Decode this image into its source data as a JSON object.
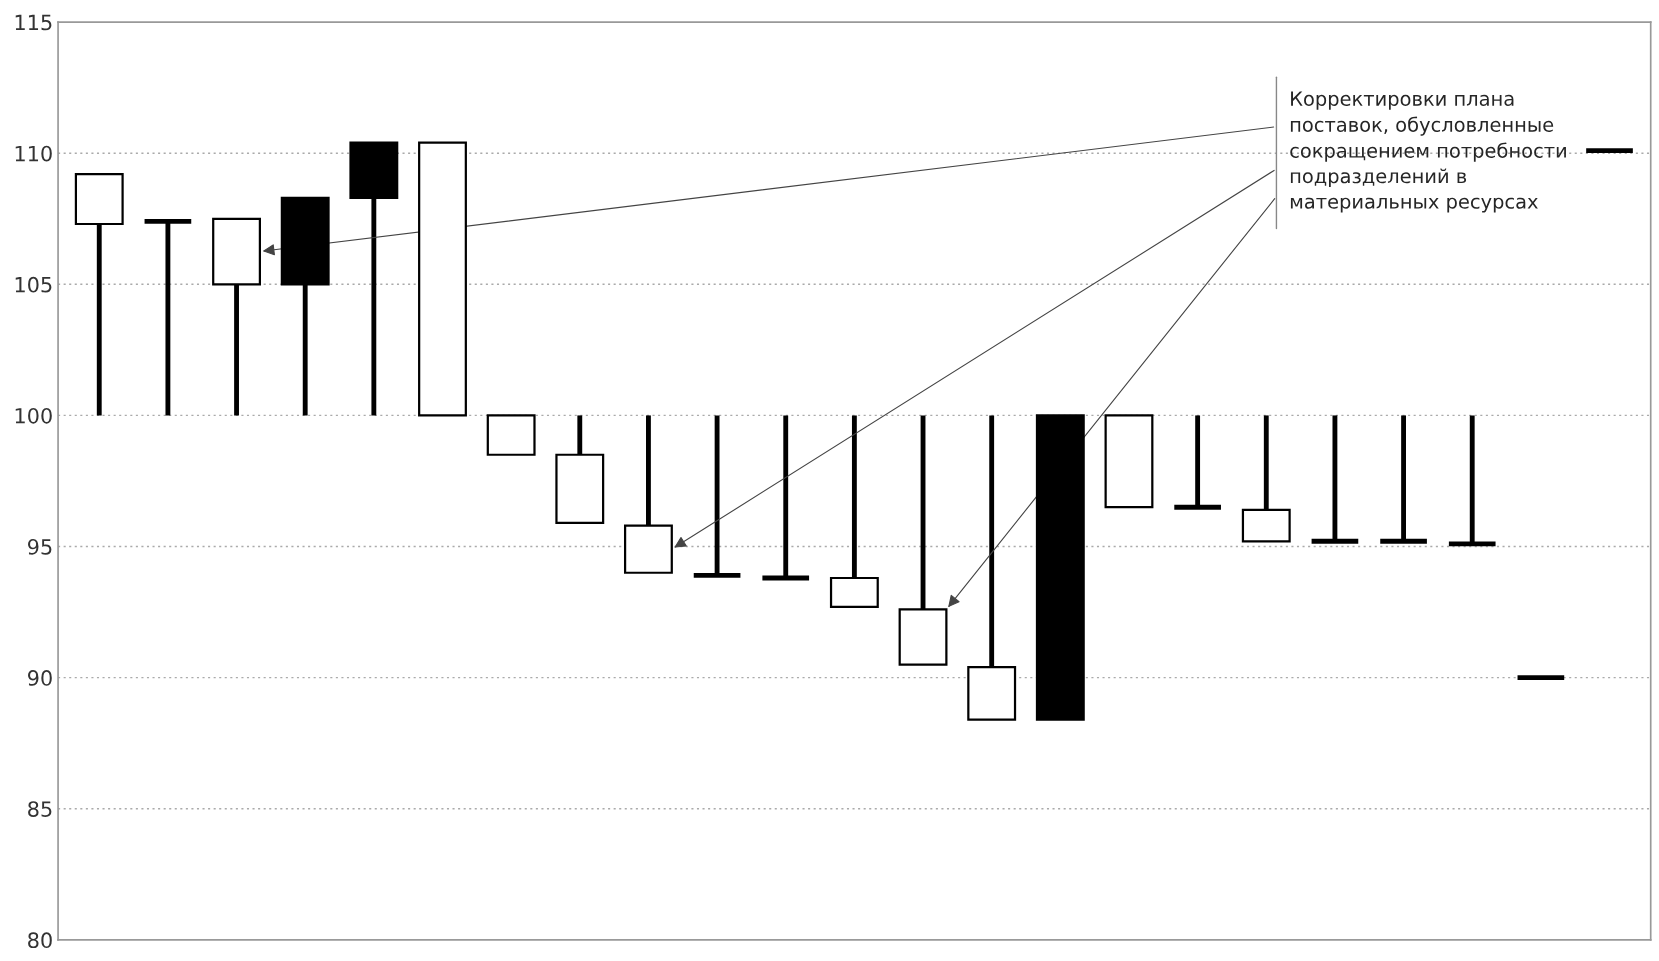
{
  "chart_data": {
    "type": "candlestick",
    "categories": [
      null,
      null,
      null,
      null,
      null,
      null,
      null,
      null,
      null,
      null,
      null,
      null,
      null,
      null,
      null,
      null,
      null,
      null,
      null,
      null,
      null,
      null,
      null
    ],
    "ohlc": [
      [
        107.3,
        109.2,
        100,
        109.2
      ],
      [
        107.4,
        107.4,
        100,
        107.4
      ],
      [
        105.0,
        107.5,
        100,
        107.5
      ],
      [
        108.3,
        108.3,
        100,
        105.0
      ],
      [
        110.4,
        110.4,
        100,
        108.3
      ],
      [
        100,
        110.4,
        100,
        110.4
      ],
      [
        98.5,
        100,
        98.5,
        100
      ],
      [
        95.9,
        100,
        95.9,
        98.5
      ],
      [
        94.0,
        100,
        94.0,
        95.8
      ],
      [
        93.9,
        100,
        93.9,
        93.9
      ],
      [
        93.8,
        100,
        93.8,
        93.8
      ],
      [
        92.7,
        100,
        92.7,
        93.8
      ],
      [
        90.5,
        100,
        90.5,
        92.6
      ],
      [
        88.4,
        100,
        88.4,
        90.4
      ],
      [
        100,
        100,
        88.4,
        88.4
      ],
      [
        96.5,
        100,
        96.5,
        100
      ],
      [
        96.5,
        100,
        96.5,
        96.5
      ],
      [
        95.2,
        100,
        95.2,
        96.4
      ],
      [
        95.2,
        100,
        95.2,
        95.2
      ],
      [
        95.2,
        100,
        95.2,
        95.2
      ],
      [
        95.1,
        100,
        95.1,
        95.1
      ],
      [
        90.0,
        90.0,
        90.0,
        90.0
      ],
      [
        110.1,
        110.1,
        110.1,
        110.1
      ]
    ],
    "ylim": [
      80,
      115
    ],
    "yticks": [
      80,
      85,
      90,
      95,
      100,
      105,
      110,
      115
    ],
    "grid": "y",
    "tick_labels": "y",
    "annotations": [
      "Корректировки плана\nпоставок, обусловленные\nсокращением потребности\nподразделений в\nматериальных ресурсах"
    ]
  }
}
